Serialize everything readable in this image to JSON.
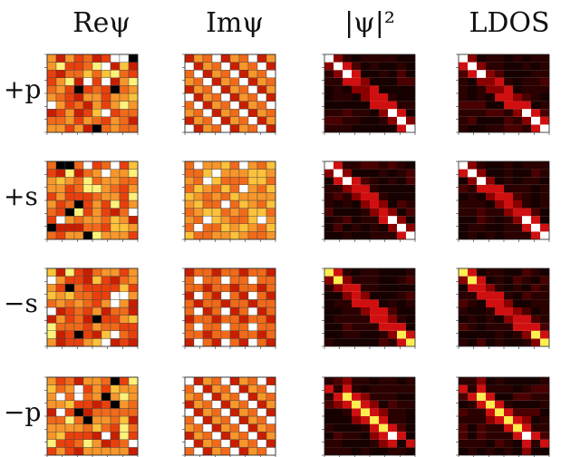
{
  "columns": [
    {
      "id": "re",
      "label": "Reψ",
      "palette": "warm"
    },
    {
      "id": "im",
      "label": "Imψ",
      "palette": "warm"
    },
    {
      "id": "abs",
      "label": "|ψ|²",
      "palette": "dark"
    },
    {
      "id": "ldos",
      "label": "LDOS",
      "palette": "dark"
    }
  ],
  "rows": [
    {
      "id": "pp",
      "label": "+p"
    },
    {
      "id": "ps",
      "label": "+s"
    },
    {
      "id": "ms",
      "label": "−s"
    },
    {
      "id": "mp",
      "label": "−p"
    }
  ],
  "colors": {
    "warm": [
      "#000000",
      "#7a0000",
      "#c81e00",
      "#e8400c",
      "#f06a1a",
      "#f7962a",
      "#fcc23a",
      "#fff27a",
      "#ffffff"
    ],
    "dark": [
      "#160000",
      "#2a0000",
      "#4a0000",
      "#8a0000",
      "#d01010",
      "#ff3c20",
      "#ff9b30",
      "#ffee50",
      "#ffffff"
    ],
    "grid_line": "#444444"
  },
  "grid_size": 10
}
